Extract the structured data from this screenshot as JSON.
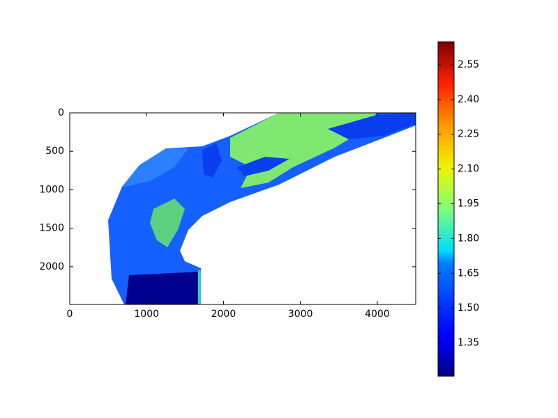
{
  "chart_data": {
    "type": "image",
    "colormap": "jet",
    "xlim": [
      0,
      4500
    ],
    "xticks": [
      0,
      1000,
      2000,
      3000,
      4000
    ],
    "ylim": [
      2490,
      0
    ],
    "yticks": [
      0,
      500,
      1000,
      1500,
      2000
    ],
    "clim": [
      1.206,
      2.649
    ],
    "cticks": [
      1.35,
      {
        "value": 1.5,
        "label": "1.50"
      },
      1.65,
      {
        "value": 1.8,
        "label": "1.80"
      },
      1.95,
      {
        "value": 2.1,
        "label": "2.10"
      },
      2.25,
      {
        "value": 2.4,
        "label": "2.40"
      },
      2.55
    ]
  }
}
